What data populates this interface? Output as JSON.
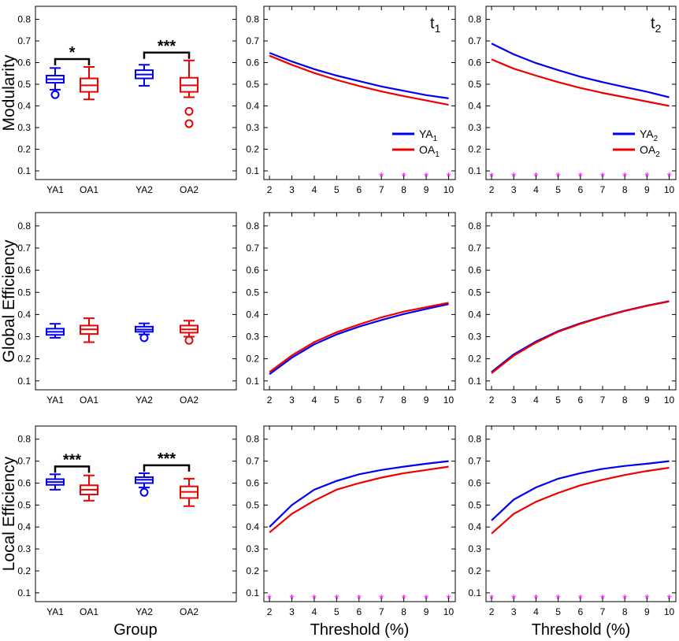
{
  "colors": {
    "ya": "#0000ee",
    "oa": "#ee0000",
    "star": "#ff00ff",
    "axis": "#000000"
  },
  "rows": [
    {
      "ylabel": "Modularity",
      "box": {
        "groups": [
          {
            "label": "YA1",
            "color": "ya",
            "min": 0.475,
            "q1": 0.507,
            "median": 0.523,
            "q3": 0.54,
            "max": 0.575,
            "outliers": [
              0.452
            ]
          },
          {
            "label": "OA1",
            "color": "oa",
            "min": 0.43,
            "q1": 0.465,
            "median": 0.495,
            "q3": 0.527,
            "max": 0.58,
            "outliers": []
          },
          {
            "label": "YA2",
            "color": "ya",
            "min": 0.493,
            "q1": 0.527,
            "median": 0.545,
            "q3": 0.565,
            "max": 0.59,
            "outliers": []
          },
          {
            "label": "OA2",
            "color": "oa",
            "min": 0.44,
            "q1": 0.465,
            "median": 0.495,
            "q3": 0.53,
            "max": 0.61,
            "outliers": [
              0.375,
              0.318
            ]
          }
        ],
        "sig": [
          {
            "from": 0,
            "to": 1,
            "text": "*"
          },
          {
            "from": 2,
            "to": 3,
            "text": "***"
          }
        ]
      },
      "lines": [
        {
          "tag": "t",
          "tag_sub": "1",
          "series": [
            {
              "name": "YA",
              "sub": "1",
              "color": "ya",
              "values": [
                0.645,
                0.605,
                0.57,
                0.54,
                0.515,
                0.49,
                0.47,
                0.45,
                0.435
              ]
            },
            {
              "name": "OA",
              "sub": "1",
              "color": "oa",
              "values": [
                0.632,
                0.59,
                0.552,
                0.52,
                0.492,
                0.467,
                0.445,
                0.425,
                0.405
              ]
            }
          ],
          "stars": [
            7,
            8,
            9,
            10
          ],
          "legend": true
        },
        {
          "tag": "t",
          "tag_sub": "2",
          "series": [
            {
              "name": "YA",
              "sub": "2",
              "color": "ya",
              "values": [
                0.688,
                0.638,
                0.598,
                0.565,
                0.535,
                0.51,
                0.487,
                0.465,
                0.44
              ]
            },
            {
              "name": "OA",
              "sub": "2",
              "color": "oa",
              "values": [
                0.615,
                0.572,
                0.54,
                0.51,
                0.483,
                0.46,
                0.44,
                0.42,
                0.4
              ]
            }
          ],
          "stars": [
            2,
            3,
            4,
            5,
            6,
            7,
            8,
            9,
            10
          ],
          "legend": true
        }
      ]
    },
    {
      "ylabel": "Global Efficiency",
      "box": {
        "groups": [
          {
            "label": "YA1",
            "color": "ya",
            "min": 0.295,
            "q1": 0.308,
            "median": 0.322,
            "q3": 0.336,
            "max": 0.358,
            "outliers": []
          },
          {
            "label": "OA1",
            "color": "oa",
            "min": 0.275,
            "q1": 0.312,
            "median": 0.333,
            "q3": 0.35,
            "max": 0.383,
            "outliers": []
          },
          {
            "label": "YA2",
            "color": "ya",
            "min": 0.31,
            "q1": 0.322,
            "median": 0.332,
            "q3": 0.345,
            "max": 0.36,
            "outliers": [
              0.295
            ]
          },
          {
            "label": "OA2",
            "color": "oa",
            "min": 0.3,
            "q1": 0.318,
            "median": 0.333,
            "q3": 0.35,
            "max": 0.372,
            "outliers": [
              0.283
            ]
          }
        ],
        "sig": []
      },
      "lines": [
        {
          "tag": "",
          "tag_sub": "",
          "series": [
            {
              "name": "YA",
              "sub": "1",
              "color": "ya",
              "values": [
                0.13,
                0.205,
                0.265,
                0.31,
                0.345,
                0.375,
                0.402,
                0.425,
                0.447
              ]
            },
            {
              "name": "OA",
              "sub": "1",
              "color": "oa",
              "values": [
                0.14,
                0.215,
                0.275,
                0.32,
                0.355,
                0.387,
                0.413,
                0.433,
                0.453
              ]
            }
          ],
          "stars": [],
          "legend": false
        },
        {
          "tag": "",
          "tag_sub": "",
          "series": [
            {
              "name": "YA",
              "sub": "2",
              "color": "ya",
              "values": [
                0.14,
                0.22,
                0.278,
                0.325,
                0.36,
                0.39,
                0.417,
                0.44,
                0.46
              ]
            },
            {
              "name": "OA",
              "sub": "2",
              "color": "oa",
              "values": [
                0.135,
                0.214,
                0.273,
                0.322,
                0.358,
                0.389,
                0.416,
                0.439,
                0.459
              ]
            }
          ],
          "stars": [],
          "legend": false
        }
      ]
    },
    {
      "ylabel": "Local Efficiency",
      "box": {
        "groups": [
          {
            "label": "YA1",
            "color": "ya",
            "min": 0.57,
            "q1": 0.592,
            "median": 0.605,
            "q3": 0.618,
            "max": 0.64,
            "outliers": []
          },
          {
            "label": "OA1",
            "color": "oa",
            "min": 0.52,
            "q1": 0.548,
            "median": 0.57,
            "q3": 0.59,
            "max": 0.635,
            "outliers": []
          },
          {
            "label": "YA2",
            "color": "ya",
            "min": 0.58,
            "q1": 0.6,
            "median": 0.615,
            "q3": 0.627,
            "max": 0.645,
            "outliers": [
              0.558
            ]
          },
          {
            "label": "OA2",
            "color": "oa",
            "min": 0.495,
            "q1": 0.532,
            "median": 0.56,
            "q3": 0.585,
            "max": 0.62,
            "outliers": []
          }
        ],
        "sig": [
          {
            "from": 0,
            "to": 1,
            "text": "***"
          },
          {
            "from": 2,
            "to": 3,
            "text": "***"
          }
        ]
      },
      "lines": [
        {
          "tag": "",
          "tag_sub": "",
          "series": [
            {
              "name": "YA",
              "sub": "1",
              "color": "ya",
              "values": [
                0.4,
                0.5,
                0.57,
                0.61,
                0.64,
                0.66,
                0.675,
                0.688,
                0.7
              ]
            },
            {
              "name": "OA",
              "sub": "1",
              "color": "oa",
              "values": [
                0.375,
                0.46,
                0.52,
                0.57,
                0.6,
                0.625,
                0.645,
                0.66,
                0.675
              ]
            }
          ],
          "stars": [
            2,
            3,
            4,
            5,
            6,
            7,
            8,
            9,
            10
          ],
          "legend": false
        },
        {
          "tag": "",
          "tag_sub": "",
          "series": [
            {
              "name": "YA",
              "sub": "2",
              "color": "ya",
              "values": [
                0.43,
                0.525,
                0.58,
                0.62,
                0.645,
                0.665,
                0.678,
                0.688,
                0.7
              ]
            },
            {
              "name": "OA",
              "sub": "2",
              "color": "oa",
              "values": [
                0.37,
                0.46,
                0.515,
                0.555,
                0.59,
                0.615,
                0.637,
                0.655,
                0.67
              ]
            }
          ],
          "stars": [
            2,
            3,
            4,
            5,
            6,
            7,
            8,
            9,
            10
          ],
          "legend": false
        }
      ]
    }
  ],
  "chart_data": {
    "type": "line",
    "title": "",
    "y_ticks": [
      "0.1",
      "0.2",
      "0.3",
      "0.4",
      "0.5",
      "0.6",
      "0.7",
      "0.8"
    ],
    "ylim": [
      0.06,
      0.86
    ],
    "x": [
      2,
      3,
      4,
      5,
      6,
      7,
      8,
      9,
      10
    ],
    "x_tick_labels": [
      "2",
      "3",
      "4",
      "5",
      "6",
      "7",
      "8",
      "9",
      "10"
    ],
    "xlim": [
      1.75,
      10.3
    ],
    "box_xlabel": "Group",
    "line_xlabel": "Threshold (%)",
    "star_symbol": "*",
    "star_value": 0.085,
    "panels_summary": "3 rows (Modularity, Global Efficiency, Local Efficiency) x 3 columns (group boxplots, t1 threshold curves, t2 threshold curves); data stored in rows[]"
  }
}
